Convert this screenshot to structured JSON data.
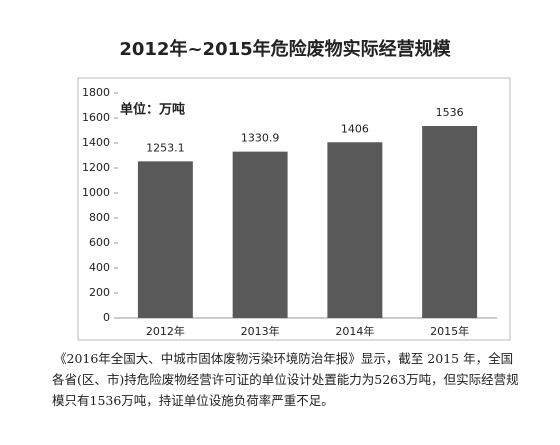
{
  "chart_data": {
    "type": "bar",
    "title": "2012年~2015年危险废物实际经营规模",
    "unit_label": "单位：万吨",
    "categories": [
      "2012年",
      "2013年",
      "2014年",
      "2015年"
    ],
    "values": [
      1253.1,
      1330.9,
      1406,
      1536
    ],
    "color": "#595959",
    "ylim": [
      0,
      1800
    ],
    "yticks": [
      0,
      200,
      400,
      600,
      800,
      1000,
      1200,
      1400,
      1600,
      1800
    ],
    "grid": false
  },
  "caption": "《2016年全国大、中城市固体废物污染环境防治年报》显示，截至 2015 年，全国各省(区、市)持危险废物经营许可证的单位设计处置能力为5263万吨，但实际经营规模只有1536万吨，持证单位设施负荷率严重不足。"
}
